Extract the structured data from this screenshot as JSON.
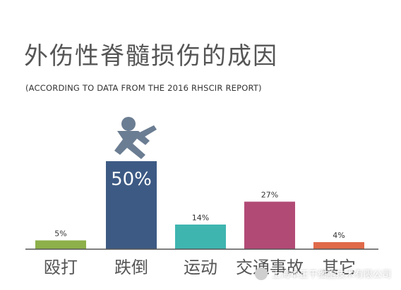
{
  "page": {
    "title": "外伤性脊髓损伤的成因",
    "subtitle": "(ACCORDING TO DATA FROM THE 2016 RHSCIR REPORT)",
    "watermark": "上海本正干细胞技术有限公司"
  },
  "chart_data": {
    "type": "bar",
    "title": "外伤性脊髓损伤的成因",
    "subtitle": "(ACCORDING TO DATA FROM THE 2016 RHSCIR REPORT)",
    "categories": [
      "殴打",
      "跌倒",
      "运动",
      "交通事故",
      "其它"
    ],
    "values": [
      5,
      50,
      14,
      27,
      4
    ],
    "data_labels": [
      "5%",
      "50%",
      "14%",
      "27%",
      "4%"
    ],
    "colors": [
      "#8db04a",
      "#3d5a84",
      "#3fb5b0",
      "#b24a76",
      "#e06a4a"
    ],
    "ylim": [
      0,
      50
    ],
    "grid": false,
    "legend": "none",
    "icons": [
      "falling-person-icon"
    ]
  }
}
